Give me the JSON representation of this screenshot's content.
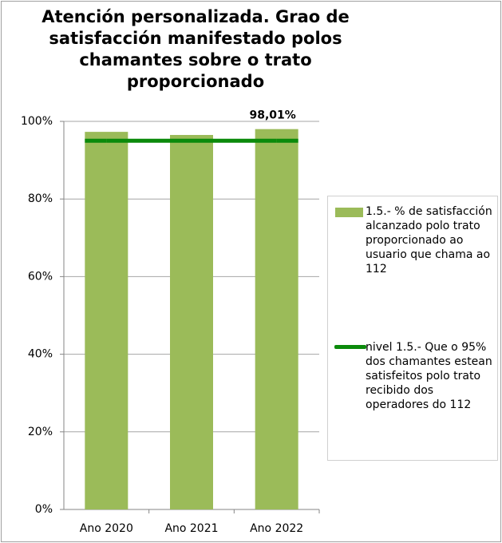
{
  "chart_data": {
    "type": "bar",
    "title": "Atención personalizada. Grao de satisfacción manifestado polos chamantes sobre o trato proporcionado",
    "categories": [
      "Ano 2020",
      "Ano 2021",
      "Ano 2022"
    ],
    "series": [
      {
        "name": "1.5.- % de satisfacción alcanzado polo trato proporcionado ao usuario que chama ao 112",
        "type": "bar",
        "color": "#9bbb59",
        "values": [
          97.3,
          96.5,
          98.01
        ],
        "value_labels": [
          null,
          null,
          "98,01%"
        ]
      },
      {
        "name": "nivel 1.5.- Que o 95% dos chamantes estean satisfeitos polo trato recibido dos operadores do 112",
        "type": "line",
        "color": "#0b8a0b",
        "values": [
          95,
          95,
          95
        ]
      }
    ],
    "ylim": [
      0,
      100
    ],
    "yticks": [
      {
        "value": 0,
        "label": "0%"
      },
      {
        "value": 20,
        "label": "20%"
      },
      {
        "value": 40,
        "label": "40%"
      },
      {
        "value": 60,
        "label": "60%"
      },
      {
        "value": 80,
        "label": "80%"
      },
      {
        "value": 100,
        "label": "100%"
      }
    ],
    "grid": true,
    "legend": "right"
  }
}
